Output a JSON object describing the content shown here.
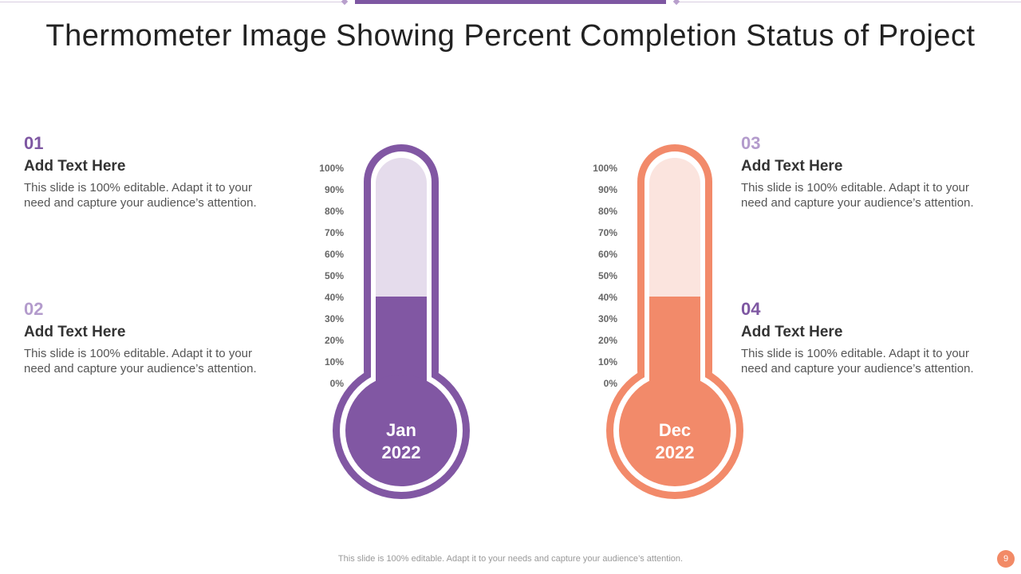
{
  "slide": {
    "title": "Thermometer Image Showing Percent Completion Status of Project",
    "footer": "This slide is 100% editable. Adapt it to your needs and capture your audience’s attention.",
    "page_number": "9"
  },
  "items": [
    {
      "number": "01",
      "heading": "Add Text Here",
      "text": "This slide is 100% editable. Adapt it to your need and capture your audience’s attention.",
      "number_color": "#7e57a2"
    },
    {
      "number": "02",
      "heading": "Add Text Here",
      "text": "This slide is 100% editable. Adapt it to your need and capture your audience’s attention.",
      "number_color": "#b39bcc"
    },
    {
      "number": "03",
      "heading": "Add Text Here",
      "text": "This slide is 100% editable. Adapt it to your need and capture your audience’s attention.",
      "number_color": "#b39bcc"
    },
    {
      "number": "04",
      "heading": "Add Text Here",
      "text": "This slide is 100% editable. Adapt it to your need and capture your audience’s attention.",
      "number_color": "#7e57a2"
    }
  ],
  "thermometers": [
    {
      "month": "Jan",
      "year": "2022",
      "level": 0.4,
      "fill_color": "#8157a3",
      "track_color": "#e5dcec"
    },
    {
      "month": "Dec",
      "year": "2022",
      "level": 0.4,
      "fill_color": "#f28a6a",
      "track_color": "#fbe4de"
    }
  ],
  "scale_labels": [
    "100%",
    "90%",
    "80%",
    "70%",
    "60%",
    "50%",
    "40%",
    "30%",
    "20%",
    "10%",
    "0%"
  ]
}
